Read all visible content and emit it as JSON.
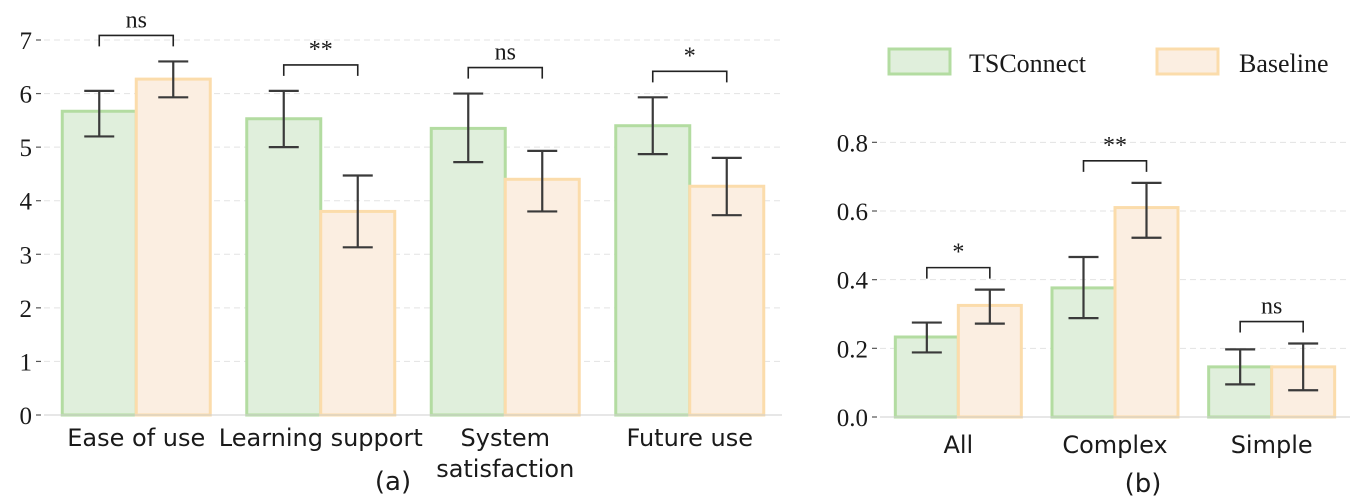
{
  "chart_data": [
    {
      "type": "bar",
      "panel_label": "(a)",
      "categories": [
        "Ease of use",
        "Learning support",
        "System\nsatisfaction",
        "Future use"
      ],
      "series": [
        {
          "name": "TSConnect",
          "values": [
            5.67,
            5.53,
            5.35,
            5.4
          ],
          "err_low": [
            5.2,
            5.0,
            4.72,
            4.87
          ],
          "err_high": [
            6.05,
            6.05,
            6.0,
            5.93
          ]
        },
        {
          "name": "Baseline",
          "values": [
            6.27,
            3.8,
            4.4,
            4.27
          ],
          "err_low": [
            5.93,
            3.13,
            3.8,
            3.73
          ],
          "err_high": [
            6.6,
            4.47,
            4.93,
            4.8
          ]
        }
      ],
      "significance": [
        "ns",
        "**",
        "ns",
        "*"
      ],
      "ylim": [
        0,
        7
      ],
      "yticks": [
        "0",
        "1",
        "2",
        "3",
        "4",
        "5",
        "6",
        "7"
      ],
      "grid": true
    },
    {
      "type": "bar",
      "panel_label": "(b)",
      "categories": [
        "All",
        "Complex",
        "Simple"
      ],
      "series": [
        {
          "name": "TSConnect",
          "values": [
            0.233,
            0.376,
            0.146
          ],
          "err_low": [
            0.188,
            0.288,
            0.095
          ],
          "err_high": [
            0.275,
            0.466,
            0.197
          ]
        },
        {
          "name": "Baseline",
          "values": [
            0.325,
            0.61,
            0.146
          ],
          "err_low": [
            0.272,
            0.522,
            0.078
          ],
          "err_high": [
            0.371,
            0.682,
            0.214
          ]
        }
      ],
      "significance": [
        "*",
        "**",
        "ns"
      ],
      "ylim": [
        0,
        0.9
      ],
      "yticks": [
        "0.0",
        "0.2",
        "0.4",
        "0.6",
        "0.8"
      ],
      "grid": true
    }
  ],
  "legend": {
    "placement": "top-right",
    "items": [
      {
        "label": "TSConnect"
      },
      {
        "label": "Baseline"
      }
    ]
  },
  "colors": {
    "tsconnect_fill": "#e0efdc",
    "tsconnect_edge": "#b3dca1",
    "baseline_fill": "#fbeee1",
    "baseline_edge": "#fbdcab",
    "error": "#3a3a3a",
    "grid": "#e3e3e3"
  }
}
